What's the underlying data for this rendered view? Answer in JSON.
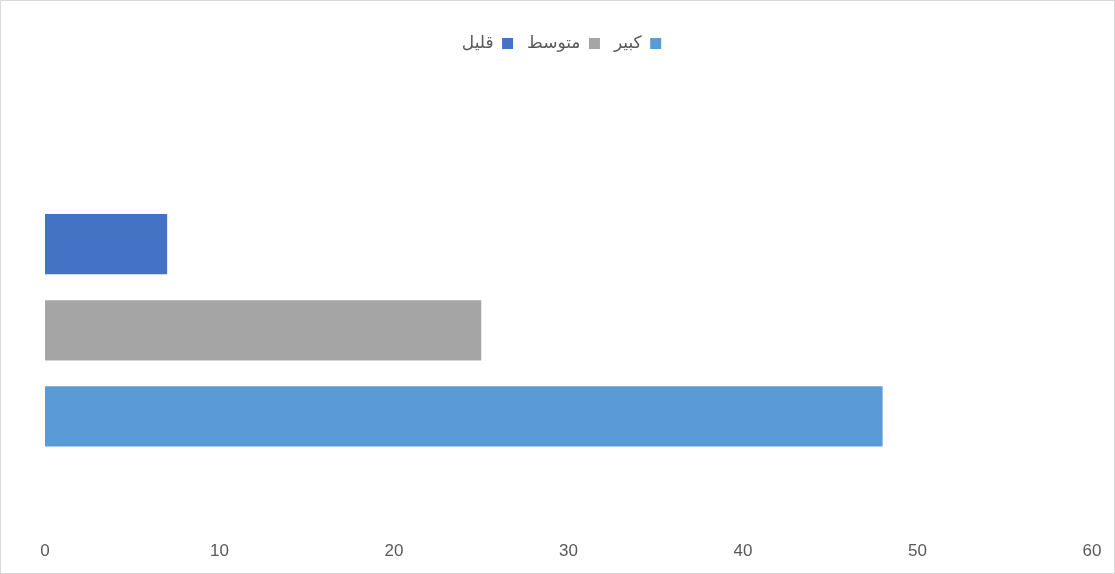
{
  "chart_data": {
    "type": "bar",
    "orientation": "horizontal",
    "categories": [
      null
    ],
    "series": [
      {
        "name": "قليل",
        "color": "#4472c4",
        "values": [
          7
        ]
      },
      {
        "name": "متوسط",
        "color": "#a5a5a5",
        "values": [
          25
        ]
      },
      {
        "name": "كبير",
        "color": "#5b9bd5",
        "values": [
          48
        ]
      }
    ],
    "xlim": [
      0,
      60
    ],
    "xticks": [
      0,
      10,
      20,
      30,
      40,
      50,
      60
    ],
    "grid": false,
    "legend": "top"
  }
}
